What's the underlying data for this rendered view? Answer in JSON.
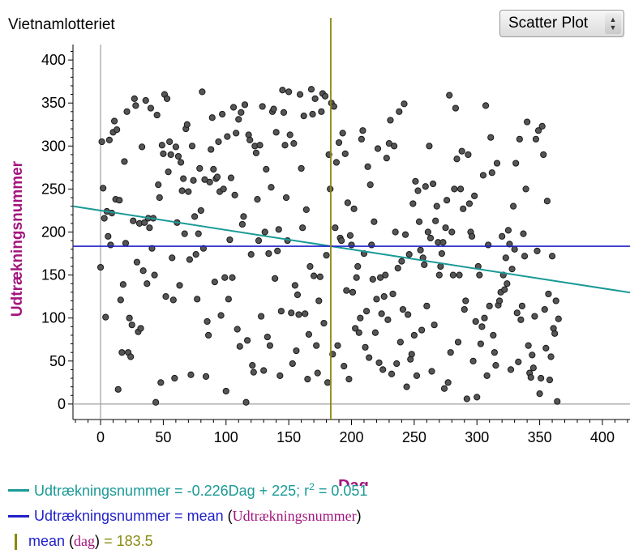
{
  "window": {
    "title": "Vietnamlotteriet",
    "plot_type": "Scatter Plot"
  },
  "legend": {
    "regression_text": "Udtrækningsnummer = -0.226Dag + 225; r",
    "regression_sup": "2",
    "regression_r2": " = 0.051",
    "mean_y_prefix": "Udtrækningsnummer = ",
    "mean_y_func": "mean",
    "mean_y_open": "(",
    "mean_y_var": "Udtrækningsnummer",
    "mean_y_close": ")",
    "mean_x_func": "mean",
    "mean_x_open": "(",
    "mean_x_var": "dag",
    "mean_x_close": ")",
    "mean_x_value": "= 183.5"
  },
  "colors": {
    "regression": "#1a9a96",
    "mean_y": "#1f1fc8",
    "mean_x": "#8a8a10",
    "label": "#a3157e",
    "point_fill": "#555555"
  },
  "chart_data": {
    "type": "scatter",
    "xlabel": "Dag",
    "ylabel": "Udtrækningsnummer",
    "xlim": [
      -22,
      422
    ],
    "ylim": [
      -18,
      418
    ],
    "xticks": [
      0,
      50,
      100,
      150,
      200,
      250,
      300,
      350,
      400
    ],
    "yticks": [
      0,
      50,
      100,
      150,
      200,
      250,
      300,
      350,
      400
    ],
    "grid": false,
    "regression": {
      "slope": -0.226,
      "intercept": 225,
      "r2": 0.051
    },
    "mean_y": 183.5,
    "mean_x": 183.5,
    "points": [
      [
        0,
        159
      ],
      [
        1,
        305
      ],
      [
        2,
        251
      ],
      [
        3,
        216
      ],
      [
        4,
        101
      ],
      [
        5,
        224
      ],
      [
        6,
        195
      ],
      [
        7,
        307
      ],
      [
        8,
        185
      ],
      [
        9,
        222
      ],
      [
        10,
        316
      ],
      [
        11,
        329
      ],
      [
        12,
        238
      ],
      [
        13,
        319
      ],
      [
        14,
        17
      ],
      [
        15,
        237
      ],
      [
        16,
        121
      ],
      [
        17,
        60
      ],
      [
        18,
        139
      ],
      [
        19,
        282
      ],
      [
        20,
        187
      ],
      [
        21,
        340
      ],
      [
        22,
        60
      ],
      [
        23,
        100
      ],
      [
        24,
        55
      ],
      [
        25,
        92
      ],
      [
        26,
        213
      ],
      [
        27,
        355
      ],
      [
        28,
        347
      ],
      [
        29,
        165
      ],
      [
        30,
        84
      ],
      [
        31,
        210
      ],
      [
        32,
        88
      ],
      [
        33,
        299
      ],
      [
        34,
        155
      ],
      [
        35,
        211
      ],
      [
        36,
        353
      ],
      [
        37,
        140
      ],
      [
        38,
        216
      ],
      [
        39,
        205
      ],
      [
        40,
        344
      ],
      [
        41,
        181
      ],
      [
        42,
        216
      ],
      [
        43,
        150
      ],
      [
        44,
        2
      ],
      [
        45,
        336
      ],
      [
        46,
        255
      ],
      [
        47,
        240
      ],
      [
        48,
        25
      ],
      [
        49,
        301
      ],
      [
        50,
        291
      ],
      [
        51,
        360
      ],
      [
        52,
        125
      ],
      [
        53,
        355
      ],
      [
        54,
        270
      ],
      [
        55,
        305
      ],
      [
        56,
        290
      ],
      [
        57,
        170
      ],
      [
        58,
        121
      ],
      [
        59,
        30
      ],
      [
        60,
        299
      ],
      [
        61,
        211
      ],
      [
        62,
        288
      ],
      [
        63,
        138
      ],
      [
        64,
        281
      ],
      [
        65,
        248
      ],
      [
        66,
        262
      ],
      [
        67,
        198
      ],
      [
        68,
        320
      ],
      [
        69,
        325
      ],
      [
        70,
        247
      ],
      [
        71,
        168
      ],
      [
        72,
        34
      ],
      [
        73,
        300
      ],
      [
        74,
        260
      ],
      [
        75,
        218
      ],
      [
        76,
        174
      ],
      [
        77,
        122
      ],
      [
        78,
        198
      ],
      [
        79,
        274
      ],
      [
        80,
        225
      ],
      [
        81,
        363
      ],
      [
        82,
        181
      ],
      [
        83,
        261
      ],
      [
        84,
        32
      ],
      [
        85,
        96
      ],
      [
        86,
        80
      ],
      [
        87,
        258
      ],
      [
        88,
        296
      ],
      [
        89,
        333
      ],
      [
        90,
        273
      ],
      [
        91,
        142
      ],
      [
        92,
        262
      ],
      [
        93,
        264
      ],
      [
        94,
        305
      ],
      [
        95,
        247
      ],
      [
        96,
        103
      ],
      [
        97,
        337
      ],
      [
        98,
        250
      ],
      [
        99,
        147
      ],
      [
        100,
        15
      ],
      [
        101,
        311
      ],
      [
        102,
        122
      ],
      [
        103,
        191
      ],
      [
        104,
        263
      ],
      [
        105,
        147
      ],
      [
        106,
        345
      ],
      [
        107,
        243
      ],
      [
        108,
        315
      ],
      [
        109,
        87
      ],
      [
        110,
        331
      ],
      [
        111,
        67
      ],
      [
        112,
        339
      ],
      [
        113,
        209
      ],
      [
        114,
        218
      ],
      [
        115,
        348
      ],
      [
        116,
        2
      ],
      [
        117,
        74
      ],
      [
        118,
        313
      ],
      [
        119,
        307
      ],
      [
        120,
        174
      ],
      [
        121,
        45
      ],
      [
        122,
        37
      ],
      [
        123,
        300
      ],
      [
        124,
        292
      ],
      [
        125,
        238
      ],
      [
        126,
        190
      ],
      [
        127,
        301
      ],
      [
        128,
        102
      ],
      [
        129,
        346
      ],
      [
        130,
        39
      ],
      [
        131,
        200
      ],
      [
        132,
        273
      ],
      [
        133,
        78
      ],
      [
        134,
        175
      ],
      [
        135,
        68
      ],
      [
        136,
        252
      ],
      [
        137,
        340
      ],
      [
        138,
        343
      ],
      [
        139,
        146
      ],
      [
        140,
        316
      ],
      [
        141,
        178
      ],
      [
        142,
        203
      ],
      [
        143,
        33
      ],
      [
        144,
        108
      ],
      [
        145,
        365
      ],
      [
        146,
        339
      ],
      [
        147,
        301
      ],
      [
        148,
        240
      ],
      [
        149,
        190
      ],
      [
        150,
        363
      ],
      [
        151,
        313
      ],
      [
        152,
        106
      ],
      [
        153,
        47
      ],
      [
        154,
        303
      ],
      [
        155,
        138
      ],
      [
        156,
        62
      ],
      [
        157,
        127
      ],
      [
        158,
        104
      ],
      [
        159,
        360
      ],
      [
        160,
        274
      ],
      [
        161,
        205
      ],
      [
        162,
        335
      ],
      [
        163,
        105
      ],
      [
        164,
        226
      ],
      [
        165,
        29
      ],
      [
        166,
        81
      ],
      [
        167,
        160
      ],
      [
        168,
        366
      ],
      [
        169,
        337
      ],
      [
        170,
        149
      ],
      [
        171,
        355
      ],
      [
        172,
        68
      ],
      [
        173,
        36
      ],
      [
        174,
        120
      ],
      [
        175,
        148
      ],
      [
        176,
        340
      ],
      [
        177,
        361
      ],
      [
        178,
        94
      ],
      [
        179,
        358
      ],
      [
        180,
        173
      ],
      [
        181,
        25
      ],
      [
        182,
        290
      ],
      [
        183,
        250
      ],
      [
        184,
        350
      ],
      [
        185,
        58
      ],
      [
        186,
        346
      ],
      [
        187,
        205
      ],
      [
        188,
        281
      ],
      [
        189,
        68
      ],
      [
        190,
        304
      ],
      [
        191,
        193
      ],
      [
        192,
        190
      ],
      [
        193,
        315
      ],
      [
        194,
        44
      ],
      [
        195,
        291
      ],
      [
        196,
        132
      ],
      [
        197,
        234
      ],
      [
        198,
        29
      ],
      [
        199,
        196
      ],
      [
        200,
        185
      ],
      [
        201,
        130
      ],
      [
        202,
        227
      ],
      [
        203,
        88
      ],
      [
        204,
        147
      ],
      [
        205,
        160
      ],
      [
        206,
        83
      ],
      [
        207,
        100
      ],
      [
        208,
        308
      ],
      [
        209,
        318
      ],
      [
        210,
        175
      ],
      [
        211,
        66
      ],
      [
        212,
        108
      ],
      [
        213,
        276
      ],
      [
        214,
        54
      ],
      [
        215,
        255
      ],
      [
        216,
        185
      ],
      [
        217,
        145
      ],
      [
        218,
        212
      ],
      [
        219,
        83
      ],
      [
        220,
        122
      ],
      [
        221,
        297
      ],
      [
        222,
        48
      ],
      [
        223,
        147
      ],
      [
        224,
        105
      ],
      [
        225,
        40
      ],
      [
        226,
        125
      ],
      [
        227,
        150
      ],
      [
        228,
        286
      ],
      [
        229,
        98
      ],
      [
        230,
        303
      ],
      [
        231,
        330
      ],
      [
        232,
        35
      ],
      [
        233,
        128
      ],
      [
        234,
        300
      ],
      [
        235,
        200
      ],
      [
        236,
        47
      ],
      [
        237,
        158
      ],
      [
        238,
        340
      ],
      [
        239,
        72
      ],
      [
        240,
        166
      ],
      [
        241,
        110
      ],
      [
        242,
        349
      ],
      [
        243,
        197
      ],
      [
        244,
        20
      ],
      [
        245,
        104
      ],
      [
        246,
        174
      ],
      [
        247,
        52
      ],
      [
        248,
        58
      ],
      [
        249,
        233
      ],
      [
        250,
        80
      ],
      [
        251,
        259
      ],
      [
        252,
        33
      ],
      [
        253,
        248
      ],
      [
        254,
        212
      ],
      [
        255,
        179
      ],
      [
        256,
        86
      ],
      [
        257,
        170
      ],
      [
        258,
        162
      ],
      [
        259,
        253
      ],
      [
        260,
        114
      ],
      [
        261,
        200
      ],
      [
        262,
        300
      ],
      [
        263,
        193
      ],
      [
        264,
        38
      ],
      [
        265,
        256
      ],
      [
        266,
        92
      ],
      [
        267,
        213
      ],
      [
        268,
        230
      ],
      [
        269,
        188
      ],
      [
        270,
        150
      ],
      [
        271,
        160
      ],
      [
        272,
        175
      ],
      [
        273,
        188
      ],
      [
        274,
        18
      ],
      [
        275,
        205
      ],
      [
        276,
        237
      ],
      [
        277,
        25
      ],
      [
        278,
        359
      ],
      [
        279,
        60
      ],
      [
        280,
        200
      ],
      [
        281,
        150
      ],
      [
        282,
        250
      ],
      [
        283,
        344
      ],
      [
        284,
        285
      ],
      [
        285,
        72
      ],
      [
        286,
        150
      ],
      [
        287,
        250
      ],
      [
        288,
        294
      ],
      [
        289,
        227
      ],
      [
        290,
        110
      ],
      [
        291,
        120
      ],
      [
        292,
        6
      ],
      [
        293,
        290
      ],
      [
        294,
        233
      ],
      [
        295,
        200
      ],
      [
        296,
        195
      ],
      [
        297,
        50
      ],
      [
        298,
        242
      ],
      [
        299,
        96
      ],
      [
        300,
        8
      ],
      [
        301,
        160
      ],
      [
        302,
        150
      ],
      [
        303,
        70
      ],
      [
        304,
        90
      ],
      [
        305,
        266
      ],
      [
        306,
        100
      ],
      [
        307,
        347
      ],
      [
        308,
        33
      ],
      [
        309,
        185
      ],
      [
        310,
        114
      ],
      [
        311,
        310
      ],
      [
        312,
        269
      ],
      [
        313,
        80
      ],
      [
        314,
        60
      ],
      [
        315,
        45
      ],
      [
        316,
        280
      ],
      [
        317,
        115
      ],
      [
        318,
        120
      ],
      [
        319,
        130
      ],
      [
        320,
        195
      ],
      [
        321,
        150
      ],
      [
        322,
        133
      ],
      [
        323,
        170
      ],
      [
        324,
        140
      ],
      [
        325,
        202
      ],
      [
        326,
        186
      ],
      [
        327,
        40
      ],
      [
        328,
        157
      ],
      [
        329,
        230
      ],
      [
        330,
        180
      ],
      [
        331,
        280
      ],
      [
        332,
        106
      ],
      [
        333,
        49
      ],
      [
        334,
        308
      ],
      [
        335,
        98
      ],
      [
        336,
        114
      ],
      [
        337,
        198
      ],
      [
        338,
        172
      ],
      [
        339,
        250
      ],
      [
        340,
        328
      ],
      [
        341,
        68
      ],
      [
        342,
        36
      ],
      [
        343,
        31
      ],
      [
        344,
        57
      ],
      [
        345,
        42
      ],
      [
        346,
        102
      ],
      [
        347,
        308
      ],
      [
        348,
        178
      ],
      [
        349,
        318
      ],
      [
        350,
        12
      ],
      [
        351,
        30
      ],
      [
        352,
        323
      ],
      [
        353,
        290
      ],
      [
        354,
        110
      ],
      [
        355,
        65
      ],
      [
        356,
        236
      ],
      [
        357,
        128
      ],
      [
        358,
        28
      ],
      [
        359,
        55
      ],
      [
        360,
        172
      ],
      [
        361,
        88
      ],
      [
        362,
        82
      ],
      [
        363,
        120
      ],
      [
        364,
        3
      ],
      [
        365,
        99
      ]
    ]
  }
}
